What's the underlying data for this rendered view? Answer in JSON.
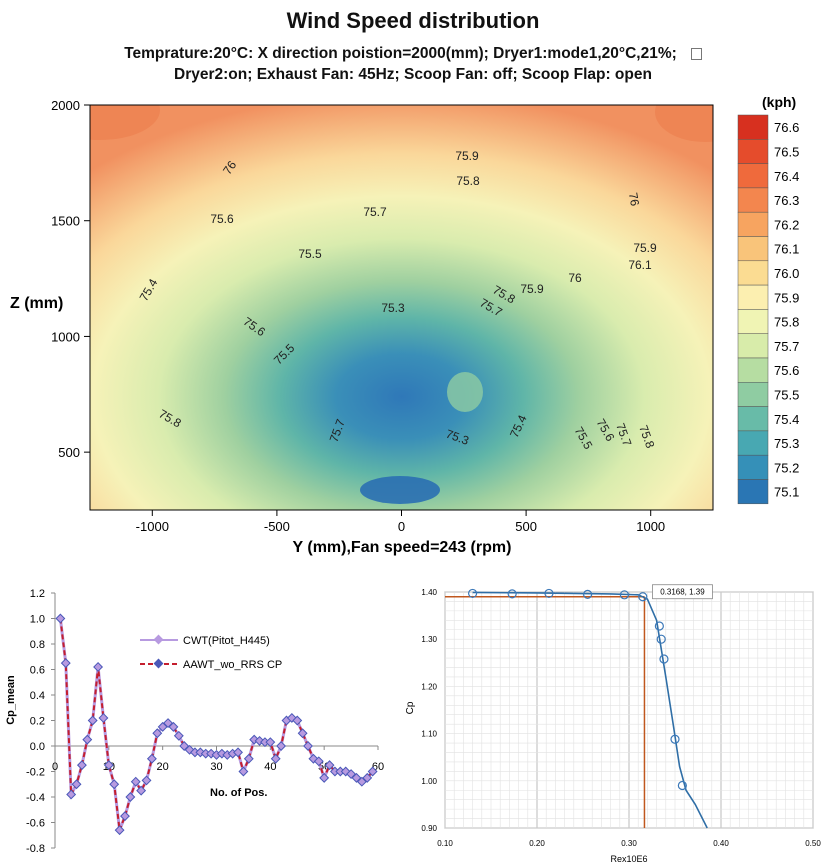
{
  "colors": {
    "axis": "#000",
    "series1": "#b79ae0",
    "series2": "#c41e2e",
    "series2_marker": "#4a58b8",
    "fit_line": "#2f6ea6",
    "marker_blue": "#3b78b8",
    "ref_line": "#c0571e"
  },
  "contour": {
    "title": "Wind Speed distribution",
    "subtitle1": "Temprature:20°C:  X direction poistion=2000(mm);  Dryer1:mode1,20°C,21%;",
    "subtitle2": "Dryer2:on; Exhaust Fan: 45Hz;  Scoop Fan: off;  Scoop Flap: open",
    "xlabel": "Y (mm),Fan speed=243 (rpm)",
    "ylabel": "Z (mm)",
    "x_ticks": [
      "-1000",
      "-500",
      "0",
      "500",
      "1000"
    ],
    "y_ticks": [
      "500",
      "1000",
      "1500",
      "2000"
    ],
    "unit": "(kph)",
    "colorbar": [
      "76.6",
      "76.5",
      "76.4",
      "76.3",
      "76.2",
      "76.1",
      "76.0",
      "75.9",
      "75.8",
      "75.7",
      "75.6",
      "75.5",
      "75.4",
      "75.3",
      "75.2",
      "75.1"
    ],
    "contour_labels": [
      "76",
      "75.9",
      "75.8",
      "75.7",
      "75.6",
      "75.5",
      "75.4",
      "75.3",
      "76",
      "75.9",
      "76.1",
      "76",
      "75.9",
      "75.8",
      "75.7",
      "75.6",
      "75.5",
      "75.8",
      "75.7",
      "75.3",
      "75.4",
      "75.5",
      "75.6",
      "75.7",
      "75.8"
    ]
  },
  "chart_data": [
    {
      "type": "heatmap",
      "title": "Wind Speed distribution",
      "xlabel": "Y (mm),Fan speed=243 (rpm)",
      "ylabel": "Z (mm)",
      "xlim": [
        -1250,
        1250
      ],
      "ylim": [
        250,
        2000
      ],
      "colorbar_range": [
        75.1,
        76.6
      ],
      "unit": "kph",
      "note_values": {
        "min_region_center": [
          0,
          600
        ],
        "max_corners": [
          [
            -1250,
            2000
          ],
          [
            1250,
            2000
          ]
        ]
      }
    },
    {
      "type": "line",
      "ylabel": "Cp_mean",
      "xlabel": "No. of Pos.",
      "xlim": [
        0,
        60
      ],
      "ylim": [
        -0.8,
        1.2
      ],
      "y_ticks": [
        "1.2",
        "1.0",
        "0.8",
        "0.6",
        "0.4",
        "0.2",
        "0.0",
        "-0.2",
        "-0.4",
        "-0.6",
        "-0.8"
      ],
      "x_ticks": [
        "0",
        "10",
        "20",
        "30",
        "40",
        "50",
        "60"
      ],
      "legend": [
        "CWT(Pitot_H445)",
        "AAWT_wo_RRS CP"
      ],
      "x": [
        1,
        2,
        3,
        4,
        5,
        6,
        7,
        8,
        9,
        10,
        11,
        12,
        13,
        14,
        15,
        16,
        17,
        18,
        19,
        20,
        21,
        22,
        23,
        24,
        25,
        26,
        27,
        28,
        29,
        30,
        31,
        32,
        33,
        34,
        35,
        36,
        37,
        38,
        39,
        40,
        41,
        42,
        43,
        44,
        45,
        46,
        47,
        48,
        49,
        50,
        51,
        52,
        53,
        54,
        55,
        56,
        57,
        58,
        59
      ],
      "series": [
        {
          "name": "CWT(Pitot_H445)",
          "values": [
            1.0,
            0.65,
            -0.38,
            -0.3,
            -0.15,
            0.05,
            0.2,
            0.62,
            0.22,
            -0.15,
            -0.3,
            -0.66,
            -0.55,
            -0.4,
            -0.28,
            -0.35,
            -0.27,
            -0.1,
            0.1,
            0.15,
            0.18,
            0.15,
            0.08,
            0.0,
            -0.03,
            -0.05,
            -0.05,
            -0.06,
            -0.06,
            -0.07,
            -0.06,
            -0.07,
            -0.06,
            -0.05,
            -0.2,
            -0.1,
            0.05,
            0.04,
            0.03,
            0.03,
            -0.1,
            0.0,
            0.2,
            0.22,
            0.2,
            0.1,
            0.0,
            -0.1,
            -0.12,
            -0.25,
            -0.15,
            -0.2,
            -0.2,
            -0.2,
            -0.22,
            -0.25,
            -0.28,
            -0.25,
            -0.2
          ]
        },
        {
          "name": "AAWT_wo_RRS CP",
          "values": [
            1.0,
            0.65,
            -0.38,
            -0.3,
            -0.15,
            0.05,
            0.2,
            0.62,
            0.22,
            -0.15,
            -0.3,
            -0.66,
            -0.55,
            -0.4,
            -0.28,
            -0.35,
            -0.27,
            -0.1,
            0.1,
            0.15,
            0.18,
            0.15,
            0.08,
            0.0,
            -0.03,
            -0.05,
            -0.05,
            -0.06,
            -0.06,
            -0.07,
            -0.06,
            -0.07,
            -0.06,
            -0.05,
            -0.2,
            -0.1,
            0.05,
            0.04,
            0.03,
            0.03,
            -0.1,
            0.0,
            0.2,
            0.22,
            0.2,
            0.1,
            0.0,
            -0.1,
            -0.12,
            -0.25,
            -0.15,
            -0.2,
            -0.2,
            -0.2,
            -0.22,
            -0.25,
            -0.28,
            -0.25,
            -0.2
          ]
        }
      ]
    },
    {
      "type": "scatter",
      "xlabel": "Rex10E6",
      "ylabel": "Cp",
      "xlim": [
        0.1,
        0.5
      ],
      "ylim": [
        0.9,
        1.4
      ],
      "x_ticks": [
        "0.10",
        "0.20",
        "0.30",
        "0.40",
        "0.50"
      ],
      "y_ticks": [
        "1.40",
        "1.30",
        "1.20",
        "1.10",
        "1.00",
        "0.90"
      ],
      "annotation": "0.3168, 1.39",
      "points": [
        [
          0.13,
          1.397
        ],
        [
          0.173,
          1.396
        ],
        [
          0.213,
          1.397
        ],
        [
          0.255,
          1.395
        ],
        [
          0.295,
          1.394
        ],
        [
          0.315,
          1.39
        ],
        [
          0.333,
          1.328
        ],
        [
          0.335,
          1.3
        ],
        [
          0.338,
          1.258
        ],
        [
          0.35,
          1.088
        ],
        [
          0.358,
          0.99
        ]
      ],
      "fit": [
        [
          0.13,
          1.399
        ],
        [
          0.2,
          1.398
        ],
        [
          0.28,
          1.396
        ],
        [
          0.31,
          1.394
        ],
        [
          0.32,
          1.385
        ],
        [
          0.33,
          1.34
        ],
        [
          0.34,
          1.22
        ],
        [
          0.348,
          1.12
        ],
        [
          0.355,
          1.03
        ],
        [
          0.362,
          0.98
        ],
        [
          0.372,
          0.95
        ],
        [
          0.385,
          0.9
        ]
      ],
      "ref_x": 0.3168,
      "ref_y": 1.39
    }
  ]
}
